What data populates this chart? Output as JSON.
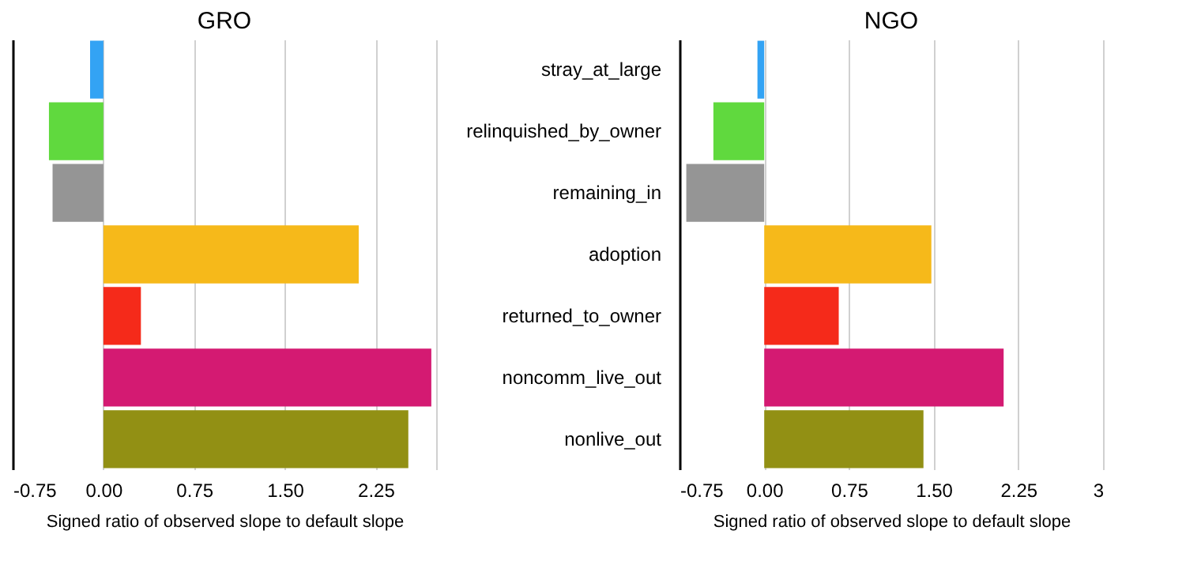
{
  "chart_data": [
    {
      "type": "bar",
      "title": "GRO",
      "orientation": "horizontal",
      "xlabel": "Signed ratio of observed slope to default slope",
      "categories": [
        null,
        null,
        null,
        null,
        null,
        null,
        null
      ],
      "values": [
        -0.11,
        -0.45,
        -0.42,
        2.11,
        0.31,
        2.71,
        2.52
      ],
      "colors": [
        "#33a3f4",
        "#60d93e",
        "#959595",
        "#f6b91a",
        "#f52a1a",
        "#d41a72",
        "#929014"
      ],
      "xlim": [
        -0.75,
        2.75
      ],
      "xticks": [
        {
          "value": -0.75,
          "label": "-0.75"
        },
        {
          "value": 0,
          "label": "0.00"
        },
        {
          "value": 0.75,
          "label": "0.75"
        },
        {
          "value": 1.5,
          "label": "1.50"
        },
        {
          "value": 2.25,
          "label": "2.25"
        },
        {
          "value": 2.75,
          "label": null
        }
      ],
      "grid": "x",
      "tick_labels": "x"
    },
    {
      "type": "bar",
      "title": "NGO",
      "orientation": "horizontal",
      "xlabel": "Signed ratio of observed slope to default slope",
      "categories": [
        "stray_at_large",
        "relinquished_by_owner",
        "remaining_in",
        "adoption",
        "returned_to_owner",
        "noncomm_live_out",
        "nonlive_out"
      ],
      "values": [
        -0.06,
        -0.45,
        -0.69,
        1.48,
        0.66,
        2.12,
        1.41
      ],
      "colors": [
        "#33a3f4",
        "#60d93e",
        "#959595",
        "#f6b91a",
        "#f52a1a",
        "#d41a72",
        "#929014"
      ],
      "xlim": [
        -0.75,
        3
      ],
      "xticks": [
        {
          "value": -0.75,
          "label": "-0.75"
        },
        {
          "value": 0,
          "label": "0.00"
        },
        {
          "value": 0.75,
          "label": "0.75"
        },
        {
          "value": 1.5,
          "label": "1.50"
        },
        {
          "value": 2.25,
          "label": "2.25"
        },
        3
      ],
      "grid": "x"
    }
  ]
}
